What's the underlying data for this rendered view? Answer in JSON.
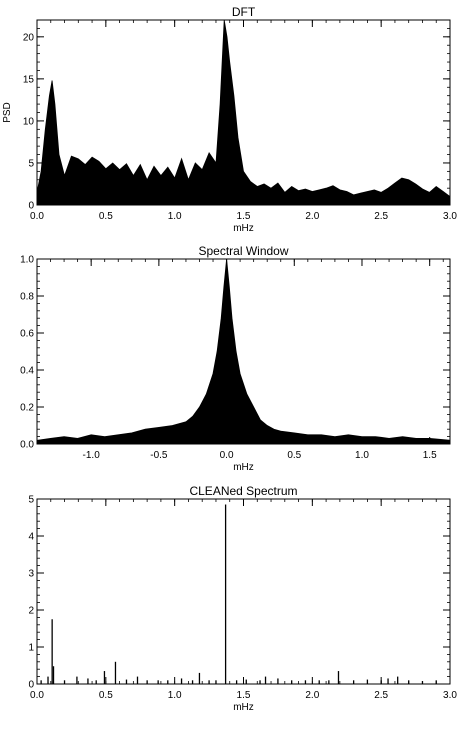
{
  "chart_data": [
    {
      "type": "line",
      "title": "DFT",
      "xlabel": "mHz",
      "ylabel": "PSD",
      "xlim": [
        0,
        3.0
      ],
      "ylim": [
        0,
        22
      ],
      "x_ticks": [
        0.0,
        0.5,
        1.0,
        1.5,
        2.0,
        2.5,
        3.0
      ],
      "x_tick_labels": [
        "0.0",
        "0.5",
        "1.0",
        "1.5",
        "2.0",
        "2.5",
        "3.0"
      ],
      "y_ticks": [
        0,
        5,
        10,
        15,
        20
      ],
      "y_tick_labels": [
        "0",
        "5",
        "10",
        "15",
        "20"
      ],
      "series": [
        {
          "x": [
            0.0,
            0.03,
            0.06,
            0.09,
            0.11,
            0.13,
            0.16,
            0.2,
            0.25,
            0.3,
            0.35,
            0.4,
            0.45,
            0.5,
            0.55,
            0.6,
            0.65,
            0.7,
            0.75,
            0.8,
            0.85,
            0.9,
            0.95,
            1.0,
            1.05,
            1.1,
            1.15,
            1.2,
            1.25,
            1.3,
            1.33,
            1.36,
            1.38,
            1.4,
            1.43,
            1.46,
            1.5,
            1.55,
            1.6,
            1.65,
            1.7,
            1.75,
            1.8,
            1.85,
            1.9,
            1.95,
            2.0,
            2.05,
            2.1,
            2.15,
            2.2,
            2.25,
            2.3,
            2.35,
            2.4,
            2.45,
            2.5,
            2.55,
            2.6,
            2.65,
            2.7,
            2.75,
            2.8,
            2.85,
            2.9,
            2.95,
            3.0
          ],
          "y": [
            1.5,
            4.0,
            9.0,
            13.0,
            14.8,
            12.0,
            6.0,
            3.5,
            5.8,
            5.5,
            4.8,
            5.7,
            5.2,
            4.3,
            5.0,
            4.2,
            4.9,
            3.5,
            4.8,
            3.0,
            4.6,
            3.5,
            4.5,
            3.2,
            5.5,
            3.0,
            5.0,
            4.2,
            6.2,
            5.0,
            12.0,
            22.0,
            20.0,
            17.0,
            13.0,
            8.0,
            4.0,
            2.8,
            2.2,
            2.5,
            2.0,
            2.6,
            1.5,
            2.2,
            1.7,
            1.9,
            1.6,
            1.8,
            2.0,
            2.3,
            1.8,
            1.6,
            1.2,
            1.4,
            1.6,
            1.8,
            1.5,
            2.0,
            2.6,
            3.2,
            3.0,
            2.5,
            1.9,
            1.5,
            2.2,
            1.6,
            1.0
          ]
        }
      ]
    },
    {
      "type": "line",
      "title": "Spectral Window",
      "xlabel": "mHz",
      "ylabel": "",
      "xlim": [
        -1.4,
        1.65
      ],
      "ylim": [
        0,
        1.0
      ],
      "x_ticks": [
        -1.0,
        -0.5,
        0.0,
        0.5,
        1.0,
        1.5
      ],
      "x_tick_labels": [
        "-1.0",
        "-0.5",
        "0.0",
        "0.5",
        "1.0",
        "1.5"
      ],
      "y_ticks": [
        0.0,
        0.2,
        0.4,
        0.6,
        0.8,
        1.0
      ],
      "y_tick_labels": [
        "0.0",
        "0.2",
        "0.4",
        "0.6",
        "0.8",
        "1.0"
      ],
      "series": [
        {
          "x": [
            -1.4,
            -1.3,
            -1.2,
            -1.1,
            -1.0,
            -0.9,
            -0.8,
            -0.7,
            -0.6,
            -0.5,
            -0.4,
            -0.3,
            -0.25,
            -0.2,
            -0.15,
            -0.1,
            -0.07,
            -0.04,
            -0.02,
            0.0,
            0.02,
            0.04,
            0.07,
            0.1,
            0.15,
            0.2,
            0.25,
            0.3,
            0.35,
            0.4,
            0.5,
            0.6,
            0.7,
            0.8,
            0.9,
            1.0,
            1.1,
            1.2,
            1.3,
            1.4,
            1.5,
            1.65
          ],
          "y": [
            0.02,
            0.03,
            0.04,
            0.03,
            0.05,
            0.04,
            0.05,
            0.06,
            0.08,
            0.09,
            0.1,
            0.12,
            0.15,
            0.2,
            0.27,
            0.38,
            0.5,
            0.68,
            0.85,
            1.0,
            0.85,
            0.68,
            0.5,
            0.38,
            0.27,
            0.2,
            0.13,
            0.1,
            0.08,
            0.07,
            0.06,
            0.05,
            0.05,
            0.04,
            0.05,
            0.04,
            0.04,
            0.03,
            0.04,
            0.03,
            0.03,
            0.02
          ]
        }
      ]
    },
    {
      "type": "bar",
      "title": "CLEANed Spectrum",
      "xlabel": "mHz",
      "ylabel": "",
      "xlim": [
        0,
        3.0
      ],
      "ylim": [
        0,
        5
      ],
      "x_ticks": [
        0.0,
        0.5,
        1.0,
        1.5,
        2.0,
        2.5,
        3.0
      ],
      "x_tick_labels": [
        "0.0",
        "0.5",
        "1.0",
        "1.5",
        "2.0",
        "2.5",
        "3.0"
      ],
      "y_ticks": [
        0,
        1,
        2,
        3,
        4,
        5
      ],
      "y_tick_labels": [
        "0",
        "1",
        "2",
        "3",
        "4",
        "5"
      ],
      "series": [
        {
          "x": [
            0.03,
            0.08,
            0.11,
            0.12,
            0.2,
            0.29,
            0.37,
            0.43,
            0.49,
            0.57,
            0.65,
            0.73,
            0.8,
            0.88,
            0.95,
            1.05,
            1.13,
            1.18,
            1.25,
            1.3,
            1.37,
            1.45,
            1.52,
            1.62,
            1.66,
            1.75,
            1.85,
            1.95,
            2.05,
            2.12,
            2.19,
            2.3,
            2.4,
            2.5,
            2.55,
            2.62,
            2.7,
            2.8,
            2.9
          ],
          "y": [
            0.1,
            0.2,
            1.75,
            0.48,
            0.1,
            0.2,
            0.15,
            0.1,
            0.35,
            0.6,
            0.12,
            0.2,
            0.1,
            0.1,
            0.1,
            0.15,
            0.1,
            0.3,
            0.1,
            0.1,
            4.85,
            0.1,
            0.12,
            0.1,
            0.2,
            0.15,
            0.1,
            0.1,
            0.1,
            0.1,
            0.35,
            0.1,
            0.12,
            0.1,
            0.15,
            0.2,
            0.1,
            0.08,
            0.1
          ]
        }
      ]
    }
  ]
}
